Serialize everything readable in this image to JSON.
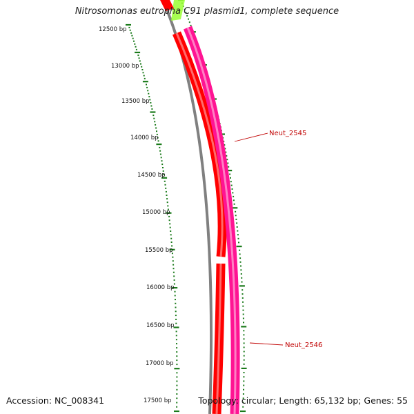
{
  "title": "Nitrosomonas eutropha C91 plasmid1, complete sequence",
  "accession_text": "Accession: NC_008341",
  "summary_text": "Topology: circular; Length: 65,132 bp; Genes: 55",
  "tick_labels": [
    "12500 bp",
    "13000 bp",
    "13500 bp",
    "14000 bp",
    "14500 bp",
    "15000 bp",
    "15500 bp",
    "16000 bp",
    "16500 bp",
    "17000 bp",
    "17500 bp"
  ],
  "genes": [
    {
      "label": "Neut_2545",
      "color": "#ff1493"
    },
    {
      "label": "Neut_2546",
      "color": "#ff1493"
    }
  ],
  "colors": {
    "backbone": "#808080",
    "cds_track": "#ff0000",
    "gene_track": "#ff1493",
    "feature_green": "#99ff33",
    "ticks": "#1a7a1a",
    "label_red": "#c00000"
  }
}
